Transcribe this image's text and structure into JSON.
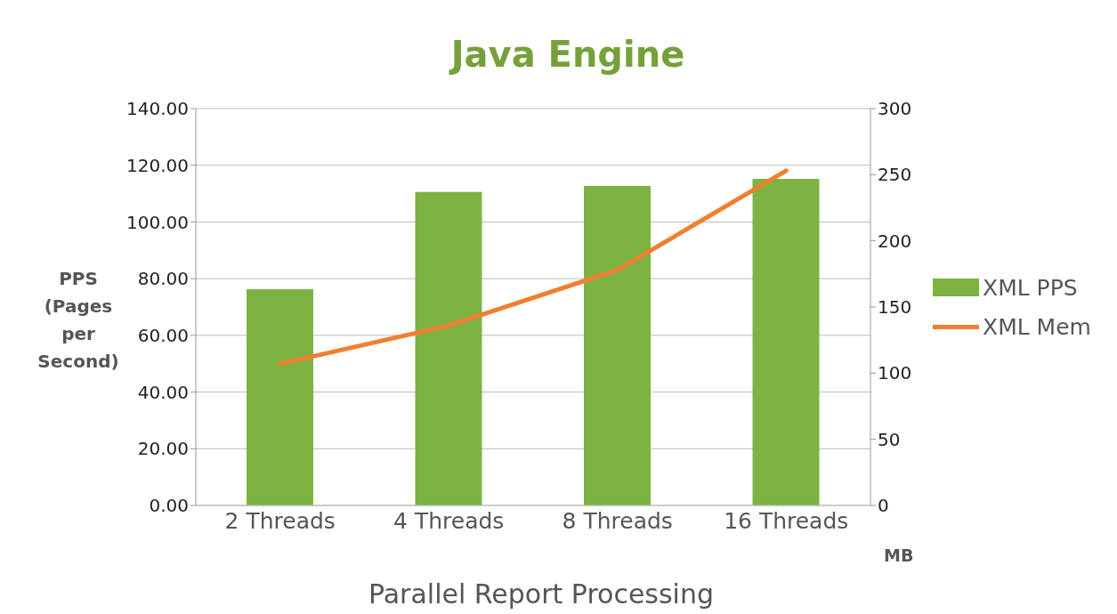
{
  "chart_data": {
    "type": "bar",
    "title": "Java Engine",
    "xlabel": "Parallel Report Processing",
    "ylabel": "PPS (Pages per Second)",
    "y2label": "MB",
    "categories": [
      "2 Threads",
      "4 Threads",
      "8 Threads",
      "16 Threads"
    ],
    "series": [
      {
        "name": "XML PPS",
        "color": "#7cb342",
        "values": [
          76.3,
          110.6,
          112.7,
          115.2
        ]
      },
      {
        "name": "XML Mem",
        "type": "line",
        "axis": "y2",
        "color": "#f07f2f",
        "values": [
          107,
          136,
          178,
          253
        ]
      }
    ],
    "ylim": [
      0,
      140
    ],
    "yticks": [
      {
        "value": 0,
        "label": "0.00"
      },
      {
        "value": 20,
        "label": "20.00"
      },
      {
        "value": 40,
        "label": "40.00"
      },
      {
        "value": 60,
        "label": "60.00"
      },
      {
        "value": 80,
        "label": "80.00"
      },
      {
        "value": 100,
        "label": "100.00"
      },
      {
        "value": 120,
        "label": "120.00"
      },
      {
        "value": 140,
        "label": "140.00"
      }
    ],
    "y2lim": [
      0,
      300
    ],
    "y2ticks": [
      0,
      50,
      100,
      150,
      200,
      250,
      300
    ],
    "grid": "y",
    "legend": "right",
    "marker": "none"
  }
}
